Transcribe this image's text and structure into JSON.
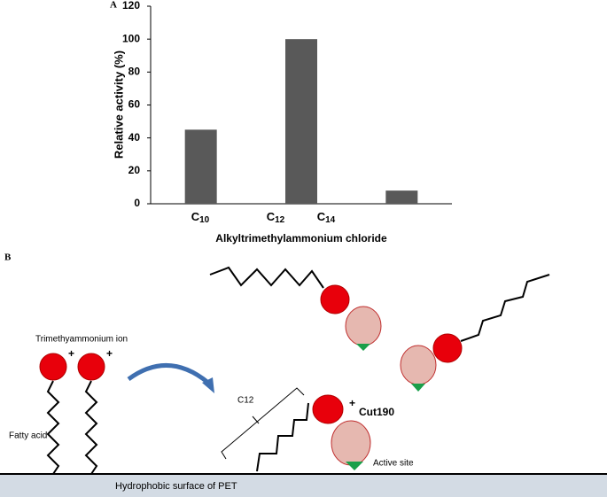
{
  "chart_data": {
    "type": "bar",
    "categories": [
      "C10",
      "C12",
      "C14"
    ],
    "values": [
      45,
      100,
      8
    ],
    "color": "#595959",
    "ylim": [
      0,
      120
    ],
    "yticks": [
      0,
      20,
      40,
      60,
      80,
      100,
      120
    ],
    "ylabel": "Relative activity (%)",
    "xlabel": "Alkyltrimethylammonium chloride",
    "panel": "A"
  },
  "diagram": {
    "panel": "B",
    "ion_label": "Trimethyammonium ion",
    "fatty_acid_label": "Fatty acid",
    "charge": "+",
    "chain_label": "C12",
    "enzyme_label": "Cut190",
    "site_label": "Active site",
    "surface_label": "Hydrophobic surface of PET"
  }
}
